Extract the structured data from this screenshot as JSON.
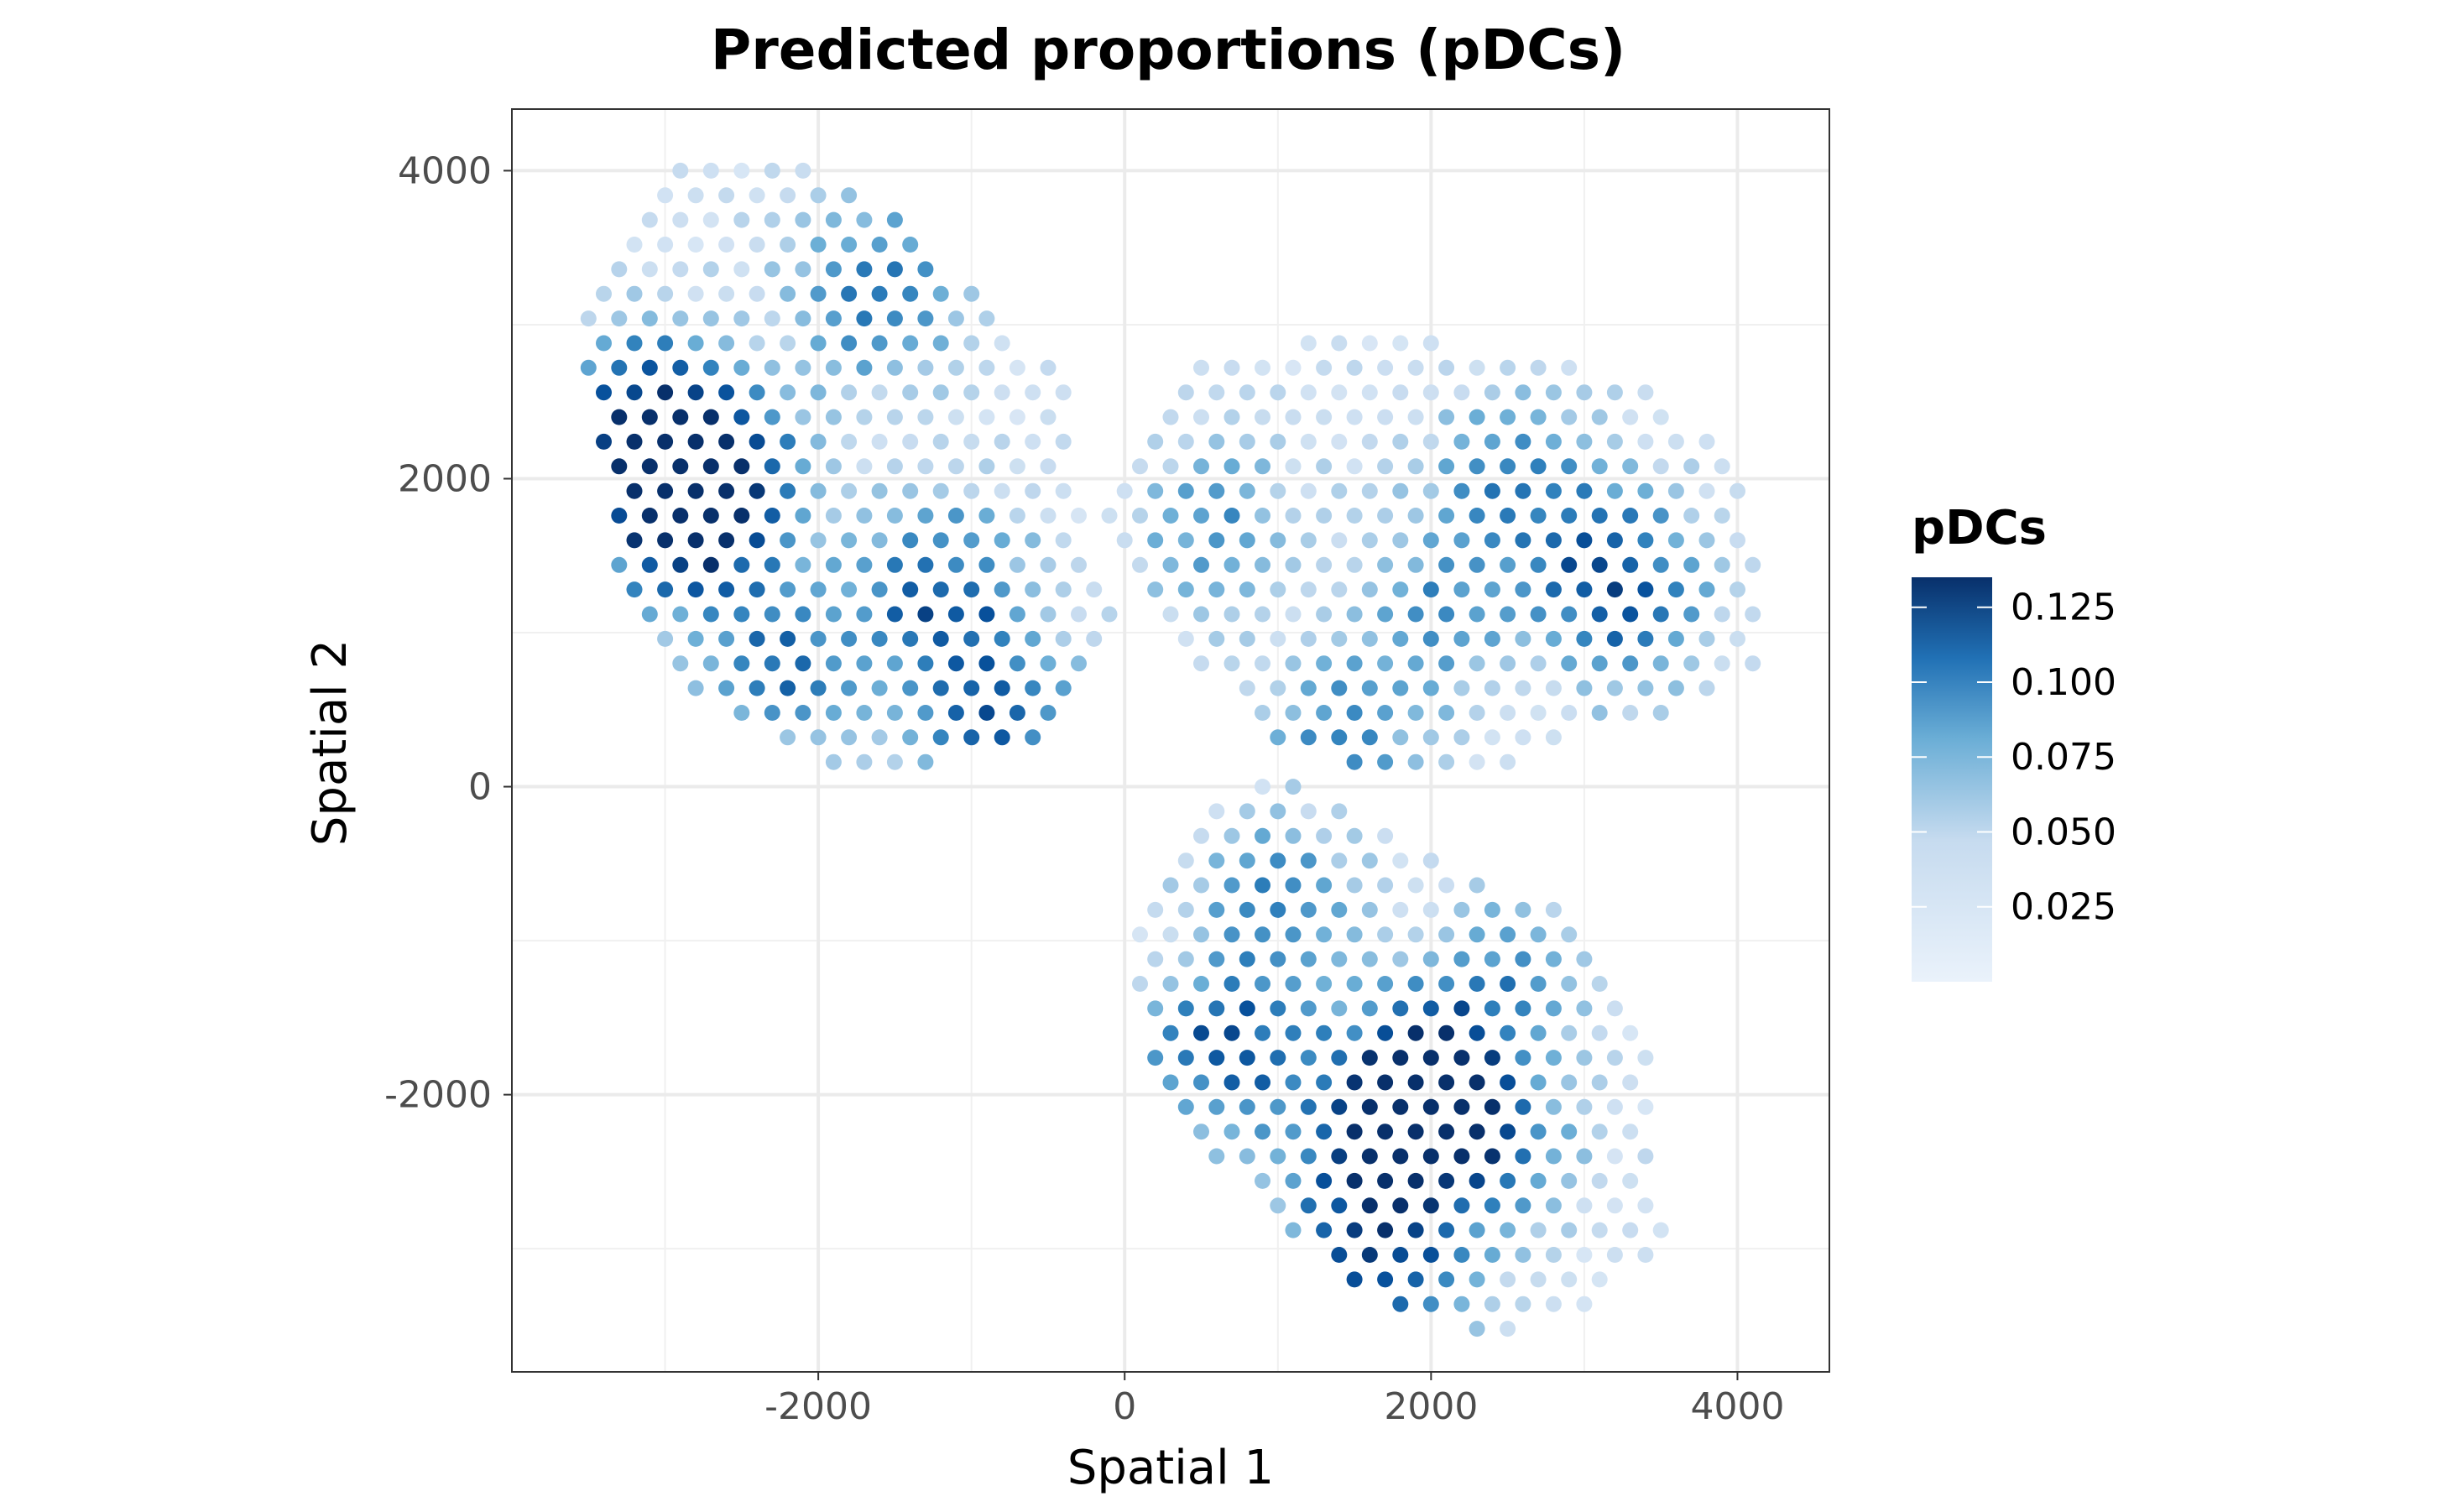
{
  "chart_data": {
    "type": "scatter",
    "title": "Predicted proportions (pDCs)",
    "xlabel": "Spatial 1",
    "ylabel": "Spatial 2",
    "xlim": [
      -4000,
      4600
    ],
    "ylim": [
      -3800,
      4400
    ],
    "x_ticks": [
      -2000,
      0,
      2000,
      4000
    ],
    "y_ticks": [
      4000,
      2000,
      0,
      -2000
    ],
    "x_tick_labels": [
      "-2000",
      "0",
      "2000",
      "4000"
    ],
    "y_tick_labels": [
      "4000",
      "2000",
      "0",
      "-2000"
    ],
    "grid": true,
    "color_scale": {
      "name": "Blues",
      "low_color": "#eaf2fb",
      "mid_color": "#6baed6",
      "high_color": "#08306b",
      "min": 0.0,
      "max": 0.135
    },
    "legend": {
      "title": "pDCs",
      "position": "right",
      "ticks": [
        0.125,
        0.1,
        0.075,
        0.05,
        0.025
      ],
      "tick_labels": [
        "0.125",
        "0.100",
        "0.075",
        "0.050",
        "0.025"
      ]
    },
    "point_grid_spacing": {
      "dx": 200,
      "dy": 160
    },
    "regions": [
      {
        "name": "upper-left section",
        "polygon": [
          [
            -2900,
            4050
          ],
          [
            -2000,
            4050
          ],
          [
            -1500,
            3700
          ],
          [
            -1200,
            3450
          ],
          [
            -700,
            3000
          ],
          [
            -400,
            2600
          ],
          [
            -350,
            2000
          ],
          [
            -200,
            1500
          ],
          [
            -50,
            1000
          ],
          [
            -250,
            650
          ],
          [
            -500,
            250
          ],
          [
            -1300,
            150
          ],
          [
            -1800,
            100
          ],
          [
            -2500,
            450
          ],
          [
            -3000,
            750
          ],
          [
            -3300,
            1400
          ],
          [
            -3400,
            2200
          ],
          [
            -3600,
            2800
          ],
          [
            -3500,
            3300
          ]
        ],
        "hotspots": [
          [
            -3100,
            2400,
            0.13
          ],
          [
            -2900,
            1700,
            0.12
          ],
          [
            -2600,
            2000,
            0.09
          ],
          [
            -1200,
            1300,
            0.085
          ],
          [
            -900,
            500,
            0.09
          ],
          [
            -1600,
            3200,
            0.075
          ],
          [
            -2200,
            800,
            0.07
          ]
        ],
        "base_value": 0.012
      },
      {
        "name": "upper-right section",
        "polygon": [
          [
            -100,
            2000
          ],
          [
            300,
            2650
          ],
          [
            800,
            2850
          ],
          [
            1500,
            2950
          ],
          [
            2300,
            2850
          ],
          [
            3100,
            2700
          ],
          [
            3600,
            2500
          ],
          [
            4000,
            2000
          ],
          [
            4200,
            1300
          ],
          [
            4150,
            800
          ],
          [
            3800,
            500
          ],
          [
            3200,
            400
          ],
          [
            2500,
            150
          ],
          [
            1600,
            100
          ],
          [
            1000,
            300
          ],
          [
            600,
            700
          ],
          [
            300,
            1000
          ],
          [
            50,
            1200
          ],
          [
            -100,
            1500
          ]
        ],
        "hotspots": [
          [
            3100,
            1500,
            0.075
          ],
          [
            2500,
            2000,
            0.06
          ],
          [
            1400,
            300,
            0.06
          ],
          [
            2000,
            1100,
            0.055
          ],
          [
            600,
            1700,
            0.05
          ],
          [
            3300,
            1100,
            0.05
          ]
        ],
        "base_value": 0.012
      },
      {
        "name": "lower section",
        "polygon": [
          [
            500,
            -200
          ],
          [
            1000,
            50
          ],
          [
            1700,
            -250
          ],
          [
            2300,
            -600
          ],
          [
            2900,
            -800
          ],
          [
            3300,
            -1300
          ],
          [
            3500,
            -1900
          ],
          [
            3500,
            -2600
          ],
          [
            3550,
            -3000
          ],
          [
            3100,
            -3350
          ],
          [
            2600,
            -3550
          ],
          [
            2000,
            -3500
          ],
          [
            1500,
            -3300
          ],
          [
            1000,
            -2800
          ],
          [
            500,
            -2300
          ],
          [
            200,
            -1800
          ],
          [
            0,
            -1000
          ]
        ],
        "hotspots": [
          [
            700,
            -1700,
            0.1
          ],
          [
            1900,
            -2050,
            0.1
          ],
          [
            1600,
            -2600,
            0.095
          ],
          [
            2000,
            -1850,
            0.09
          ],
          [
            1700,
            -3200,
            0.08
          ],
          [
            2400,
            -2400,
            0.06
          ],
          [
            1000,
            -700,
            0.06
          ],
          [
            2500,
            -1200,
            0.05
          ]
        ],
        "base_value": 0.01
      }
    ]
  }
}
